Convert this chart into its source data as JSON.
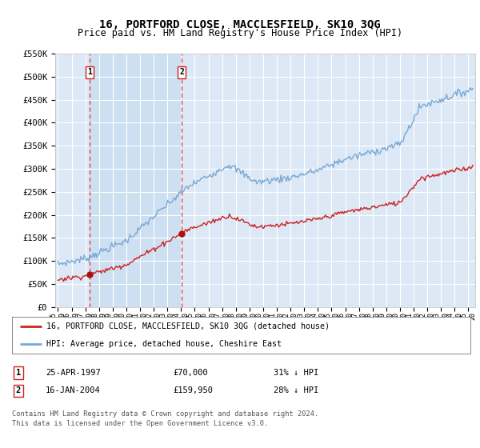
{
  "title": "16, PORTFORD CLOSE, MACCLESFIELD, SK10 3QG",
  "subtitle": "Price paid vs. HM Land Registry's House Price Index (HPI)",
  "title_fontsize": 10,
  "subtitle_fontsize": 8.5,
  "background_color": "#ffffff",
  "plot_bg_color": "#dce8f5",
  "grid_color": "#ffffff",
  "legend_label_red": "16, PORTFORD CLOSE, MACCLESFIELD, SK10 3QG (detached house)",
  "legend_label_blue": "HPI: Average price, detached house, Cheshire East",
  "sale1_year": 1997.32,
  "sale1_price": 70000,
  "sale1_label": "1",
  "sale2_year": 2004.04,
  "sale2_price": 159950,
  "sale2_label": "2",
  "ylim_min": 0,
  "ylim_max": 550000,
  "xlim_min": 1994.8,
  "xlim_max": 2025.5,
  "footer1": "Contains HM Land Registry data © Crown copyright and database right 2024.",
  "footer2": "This data is licensed under the Open Government Licence v3.0.",
  "table_row1": [
    "1",
    "25-APR-1997",
    "£70,000",
    "31% ↓ HPI"
  ],
  "table_row2": [
    "2",
    "16-JAN-2004",
    "£159,950",
    "28% ↓ HPI"
  ]
}
